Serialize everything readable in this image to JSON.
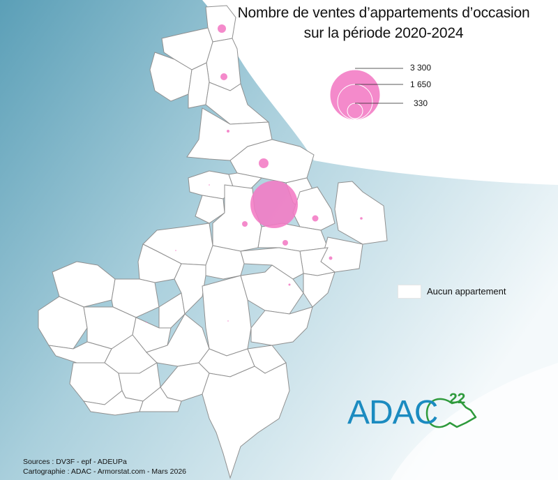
{
  "title": {
    "line1": "Nombre de ventes d’appartements d’occasion",
    "line2": "sur la période 2020-2024"
  },
  "legend": {
    "sizes": [
      {
        "label": "3 300",
        "value": 3300
      },
      {
        "label": "1 650",
        "value": 1650
      },
      {
        "label": "330",
        "value": 330
      }
    ],
    "none_label": "Aucun appartement",
    "bubble_color": "#f27ac4"
  },
  "sources": {
    "line1": "Sources : DV3F - epf - ADEUPa",
    "line2": "Cartographie : ADAC - Armorstat.com - Mars 2026"
  },
  "logo": {
    "text": "ADAC",
    "superscript": "22",
    "text_color": "#1b8bc0",
    "accent_color": "#2e9a3c"
  },
  "colors": {
    "sea": "#5aa0b8",
    "land_fill": "#ffffff",
    "border": "#8f8f8f"
  }
}
